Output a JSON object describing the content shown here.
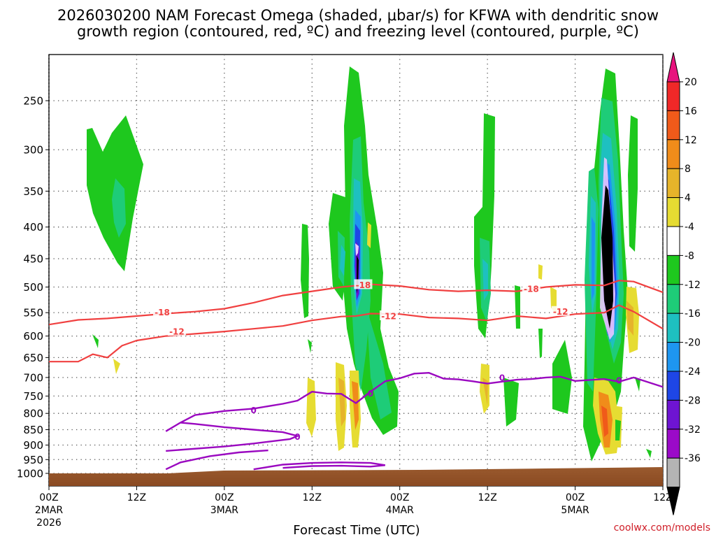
{
  "chart_data": {
    "type": "heatmap",
    "title_line1": "2026030200 NAM Forecast Omega (shaded, μbar/s) for KFWA with dendritic snow",
    "title_line2": "growth region (contoured, red, ºC) and freezing level (contoured, purple, ºC)",
    "xlabel": "Forecast Time (UTC)",
    "credit": "coolwx.com/models",
    "x_ticks": [
      {
        "h": 0,
        "l1": "00Z",
        "l2": "2MAR",
        "l3": "2026"
      },
      {
        "h": 12,
        "l1": "12Z",
        "l2": "",
        "l3": ""
      },
      {
        "h": 24,
        "l1": "00Z",
        "l2": "3MAR",
        "l3": ""
      },
      {
        "h": 36,
        "l1": "12Z",
        "l2": "",
        "l3": ""
      },
      {
        "h": 48,
        "l1": "00Z",
        "l2": "4MAR",
        "l3": ""
      },
      {
        "h": 60,
        "l1": "12Z",
        "l2": "",
        "l3": ""
      },
      {
        "h": 72,
        "l1": "00Z",
        "l2": "5MAR",
        "l3": ""
      },
      {
        "h": 84,
        "l1": "12Z",
        "l2": "",
        "l3": ""
      }
    ],
    "x_range_hours": [
      0,
      84
    ],
    "y_ticks": [
      250,
      300,
      350,
      400,
      450,
      500,
      550,
      600,
      650,
      700,
      750,
      800,
      850,
      900,
      950,
      1000
    ],
    "y_scale": "log-pressure (hPa)",
    "colorbar": {
      "labels": [
        "20",
        "16",
        "12",
        "8",
        "4",
        "-4",
        "-8",
        "-12",
        "-16",
        "-20",
        "-24",
        "-28",
        "-32",
        "-36"
      ],
      "colors": [
        "#e8137e",
        "#f02828",
        "#f05a1a",
        "#f08c1a",
        "#e6b42a",
        "#e6dc32",
        "#ffffff",
        "#1ec81e",
        "#1ecc78",
        "#1ec0c0",
        "#1e96f0",
        "#1e46e6",
        "#6e14d2",
        "#9b0ac8",
        "#b4b4b4",
        "#000000"
      ]
    },
    "contours": {
      "minus18": {
        "label": "-18",
        "color": "#f04040",
        "series": [
          [
            0,
            575
          ],
          [
            4,
            565
          ],
          [
            8,
            562
          ],
          [
            12,
            557
          ],
          [
            16,
            552
          ],
          [
            20,
            548
          ],
          [
            24,
            542
          ],
          [
            28,
            530
          ],
          [
            32,
            516
          ],
          [
            36,
            508
          ],
          [
            40,
            500
          ],
          [
            44,
            495
          ],
          [
            48,
            498
          ],
          [
            52,
            505
          ],
          [
            56,
            508
          ],
          [
            60,
            506
          ],
          [
            64,
            508
          ],
          [
            68,
            500
          ],
          [
            72,
            496
          ],
          [
            76,
            497
          ],
          [
            78,
            488
          ],
          [
            80,
            490
          ],
          [
            84,
            510
          ]
        ]
      },
      "minus12": {
        "label": "-12",
        "color": "#f04040",
        "series": [
          [
            0,
            660
          ],
          [
            4,
            660
          ],
          [
            6,
            642
          ],
          [
            8,
            650
          ],
          [
            10,
            622
          ],
          [
            12,
            610
          ],
          [
            16,
            600
          ],
          [
            20,
            595
          ],
          [
            24,
            590
          ],
          [
            28,
            584
          ],
          [
            32,
            578
          ],
          [
            36,
            566
          ],
          [
            40,
            558
          ],
          [
            42,
            557
          ],
          [
            44,
            552
          ],
          [
            48,
            553
          ],
          [
            52,
            560
          ],
          [
            56,
            562
          ],
          [
            60,
            566
          ],
          [
            64,
            557
          ],
          [
            68,
            562
          ],
          [
            72,
            553
          ],
          [
            76,
            550
          ],
          [
            78,
            535
          ],
          [
            80,
            548
          ],
          [
            84,
            584
          ]
        ]
      },
      "freezing": {
        "label": "0",
        "color": "#9a08c0",
        "series": [
          [
            16,
            855
          ],
          [
            18,
            828
          ],
          [
            20,
            805
          ],
          [
            24,
            793
          ],
          [
            28,
            786
          ],
          [
            32,
            772
          ],
          [
            34,
            763
          ],
          [
            36,
            738
          ],
          [
            38,
            743
          ],
          [
            40,
            744
          ],
          [
            42,
            770
          ],
          [
            44,
            738
          ],
          [
            46,
            710
          ],
          [
            48,
            702
          ],
          [
            50,
            690
          ],
          [
            52,
            688
          ],
          [
            54,
            703
          ],
          [
            56,
            705
          ],
          [
            58,
            710
          ],
          [
            60,
            716
          ],
          [
            64,
            706
          ],
          [
            66,
            704
          ],
          [
            68,
            700
          ],
          [
            70,
            698
          ],
          [
            72,
            709
          ],
          [
            76,
            704
          ],
          [
            78,
            711
          ],
          [
            80,
            700
          ],
          [
            84,
            725
          ]
        ]
      },
      "freezing_label_points": [
        [
          28,
          790
        ],
        [
          44,
          742
        ],
        [
          62,
          700
        ],
        [
          78,
          708
        ],
        [
          34,
          872
        ]
      ]
    },
    "omega_blobs": [
      {
        "hour": 9,
        "p_top": 265,
        "p_bot": 470,
        "min": -14
      },
      {
        "hour": 43,
        "p_top": 245,
        "p_bot": 880,
        "min": -36
      },
      {
        "hour": 36,
        "p_top": 390,
        "p_bot": 570,
        "min": -10
      },
      {
        "hour": 62,
        "p_top": 265,
        "p_bot": 600,
        "min": -14
      },
      {
        "hour": 78,
        "p_top": 240,
        "p_bot": 650,
        "min": -36
      },
      {
        "hour": 40,
        "p_top": 700,
        "p_bot": 900,
        "max": 12
      },
      {
        "hour": 80,
        "p_top": 700,
        "p_bot": 940,
        "max": 16
      }
    ]
  }
}
